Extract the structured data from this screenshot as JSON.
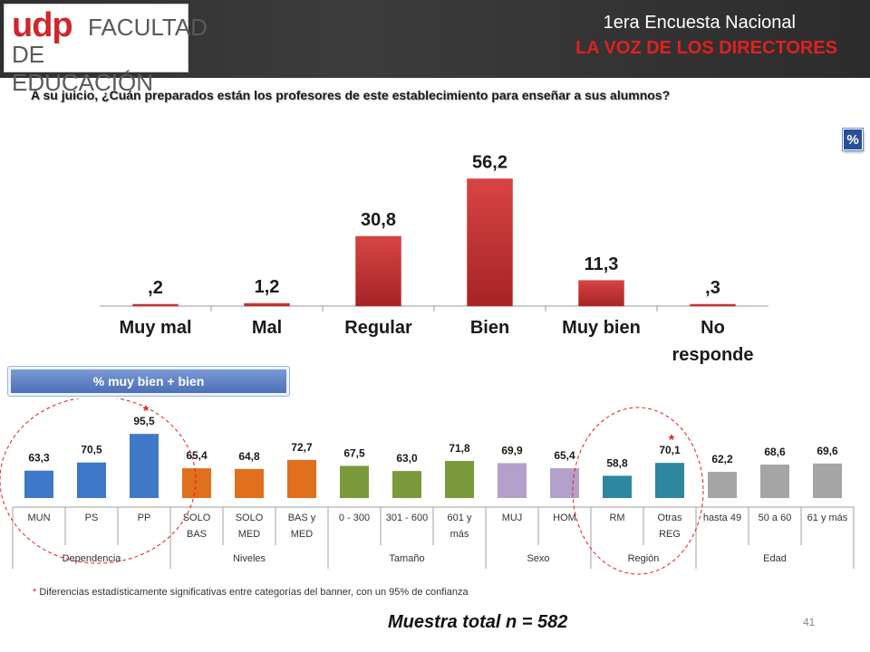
{
  "header": {
    "logo_udp": "udp",
    "logo_line1": "FACULTAD",
    "logo_line2": "DE EDUCACIÓN",
    "title": "1era Encuesta Nacional",
    "subtitle": "LA VOZ DE LOS DIRECTORES"
  },
  "question": "A su juicio, ¿Cuán preparados están los profesores de este establecimiento para enseñar a sus alumnos?",
  "percent_badge": "%",
  "colors": {
    "main_bar": "#c83232",
    "dependencia": "#3f78c8",
    "niveles": "#e06f1e",
    "tamano": "#7a9a3c",
    "sexo": "#b3a1cc",
    "region": "#2d87a0",
    "edad": "#a5a5a5",
    "significance_circle": "#e02020"
  },
  "chart_data": [
    {
      "type": "bar",
      "categories": [
        "Muy mal",
        "Mal",
        "Regular",
        "Bien",
        "Muy bien",
        "No responde"
      ],
      "values": [
        0.2,
        1.2,
        30.8,
        56.2,
        11.3,
        0.3
      ],
      "value_labels": [
        ",2",
        "1,2",
        "30,8",
        "56,2",
        "11,3",
        ",3"
      ],
      "title": "",
      "xlabel": "",
      "ylabel": "",
      "ylim": [
        0,
        60
      ],
      "grid": false
    },
    {
      "type": "bar",
      "title": "% muy bien + bien",
      "ylim": [
        0,
        100
      ],
      "grid": false,
      "categories": [
        "MUN",
        "PS",
        "PP",
        "SOLO BAS",
        "SOLO MED",
        "BAS y MED",
        "0 - 300",
        "301 - 600",
        "601 y más",
        "MUJ",
        "HOM",
        "RM",
        "Otras REG",
        "hasta 49",
        "50 a 60",
        "61 y más"
      ],
      "category_lines": [
        [
          "MUN"
        ],
        [
          "PS"
        ],
        [
          "PP"
        ],
        [
          "SOLO",
          "BAS"
        ],
        [
          "SOLO",
          "MED"
        ],
        [
          "BAS y",
          "MED"
        ],
        [
          "0 - 300"
        ],
        [
          "301 - 600"
        ],
        [
          "601 y",
          "más"
        ],
        [
          "MUJ"
        ],
        [
          "HOM"
        ],
        [
          "RM"
        ],
        [
          "Otras",
          "REG"
        ],
        [
          "hasta 49"
        ],
        [
          "50 a 60"
        ],
        [
          "61 y más"
        ]
      ],
      "values": [
        63.3,
        70.5,
        95.5,
        65.4,
        64.8,
        72.7,
        67.5,
        63.0,
        71.8,
        69.9,
        65.4,
        58.8,
        70.1,
        62.2,
        68.6,
        69.6
      ],
      "value_labels": [
        "63,3",
        "70,5",
        "95,5",
        "65,4",
        "64,8",
        "72,7",
        "67,5",
        "63,0",
        "71,8",
        "69,9",
        "65,4",
        "58,8",
        "70,1",
        "62,2",
        "68,6",
        "69,6"
      ],
      "significant": [
        false,
        false,
        true,
        false,
        false,
        false,
        false,
        false,
        false,
        false,
        false,
        false,
        true,
        false,
        false,
        false
      ],
      "groups": [
        {
          "name": "Dependencia",
          "start": 0,
          "count": 3,
          "color": "#3f78c8"
        },
        {
          "name": "Niveles",
          "start": 3,
          "count": 3,
          "color": "#e06f1e"
        },
        {
          "name": "Tamaño",
          "start": 6,
          "count": 3,
          "color": "#7a9a3c"
        },
        {
          "name": "Sexo",
          "start": 9,
          "count": 2,
          "color": "#b3a1cc"
        },
        {
          "name": "Región",
          "start": 11,
          "count": 2,
          "color": "#2d87a0"
        },
        {
          "name": "Edad",
          "start": 13,
          "count": 3,
          "color": "#a5a5a5"
        }
      ]
    }
  ],
  "footnote_star": "*",
  "footnote": "Diferencias estadísticamente significativas entre categorías del banner, con un 95% de confianza",
  "sample": "Muestra total n = 582",
  "page_number": "41"
}
